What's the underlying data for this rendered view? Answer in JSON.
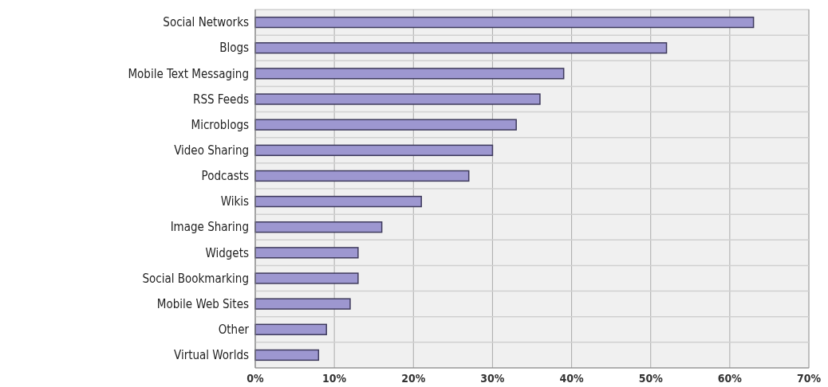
{
  "chart_data": {
    "type": "bar",
    "orientation": "horizontal",
    "categories": [
      "Social Networks",
      "Blogs",
      "Mobile Text Messaging",
      "RSS Feeds",
      "Microblogs",
      "Video Sharing",
      "Podcasts",
      "Wikis",
      "Image Sharing",
      "Widgets",
      "Social Bookmarking",
      "Mobile Web Sites",
      "Other",
      "Virtual Worlds"
    ],
    "values": [
      63,
      52,
      39,
      36,
      33,
      30,
      27,
      21,
      16,
      13,
      13,
      12,
      9,
      8
    ],
    "color": "#9d97d0",
    "xlim": [
      0,
      70
    ],
    "xticks": [
      {
        "value": 0,
        "label": "0%"
      },
      {
        "value": 10,
        "label": "10%"
      },
      {
        "value": 20,
        "label": "20%"
      },
      {
        "value": 30,
        "label": "30%"
      },
      {
        "value": 40,
        "label": "40%"
      },
      {
        "value": 50,
        "label": "50%"
      },
      {
        "value": 60,
        "label": "60%"
      },
      {
        "value": 70,
        "label": "70%"
      }
    ],
    "grid": true
  }
}
